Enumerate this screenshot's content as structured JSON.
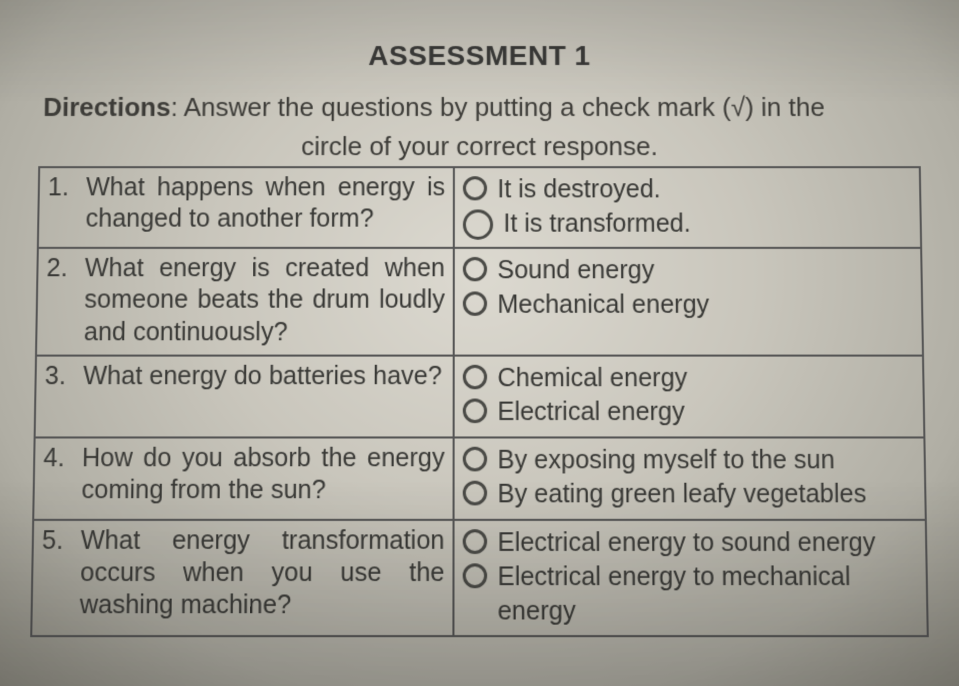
{
  "title": "ASSESSMENT 1",
  "directions_label": "Directions",
  "directions_line1": ": Answer the questions by putting a check mark (√) in the",
  "directions_line2": "circle of your correct response.",
  "rows": [
    {
      "num": "1.",
      "question": "What happens when energy is changed to another form?",
      "options": [
        "It is destroyed.",
        "It is transformed."
      ]
    },
    {
      "num": "2.",
      "question": "What energy is created when someone beats the drum loudly and continuously?",
      "options": [
        "Sound energy",
        "Mechanical energy"
      ]
    },
    {
      "num": "3.",
      "question": "What energy do batteries have?",
      "options": [
        "Chemical energy",
        "Electrical energy"
      ]
    },
    {
      "num": "4.",
      "question": "How do you absorb the energy coming from the sun?",
      "options": [
        "By exposing myself to the sun",
        "By eating green leafy vegetables"
      ]
    },
    {
      "num": "5.",
      "question": "What energy transformation occurs when you use the washing machine?",
      "options": [
        "Electrical energy to sound energy",
        "Electrical energy to mechanical energy"
      ]
    }
  ],
  "style": {
    "title_fontsize": 28,
    "body_fontsize": 25,
    "text_color": "#393936",
    "border_color": "#555",
    "circle_border": "#4a4a46",
    "bg_center": "#dcd9d0",
    "bg_edge": "#8e8c82"
  }
}
